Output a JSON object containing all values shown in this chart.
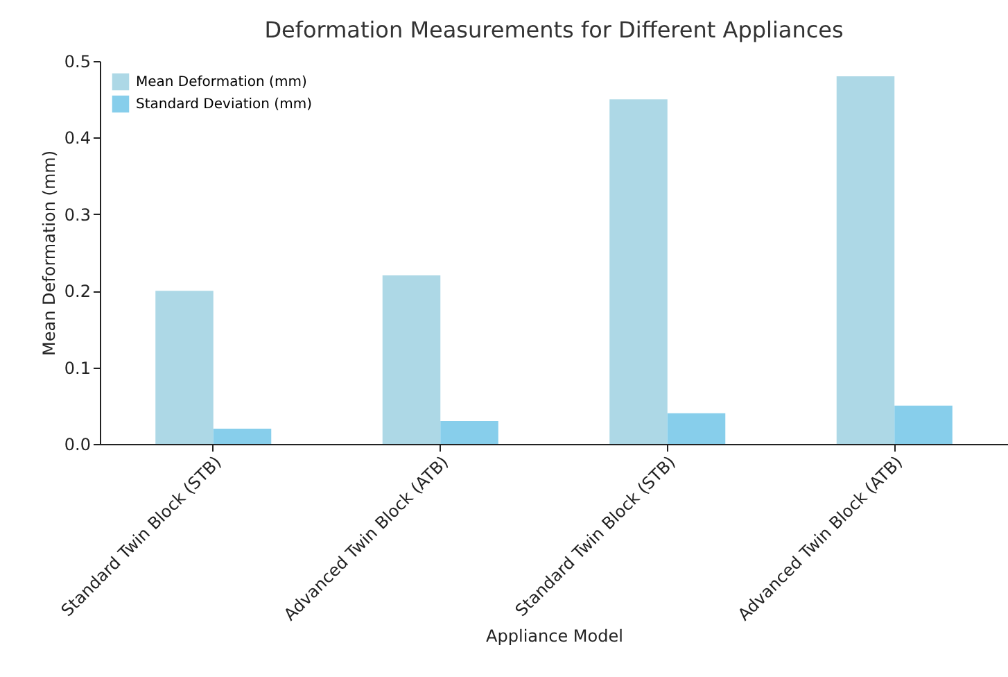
{
  "chart_data": {
    "type": "bar",
    "title": "Deformation Measurements for Different Appliances",
    "xlabel": "Appliance Model",
    "ylabel": "Mean Deformation (mm)",
    "categories": [
      "Standard Twin Block (STB)",
      "Advanced Twin Block (ATB)",
      "Standard Twin Block (STB)",
      "Advanced Twin Block (ATB)"
    ],
    "series": [
      {
        "name": "Mean Deformation (mm)",
        "color": "#add8e6",
        "values": [
          0.2,
          0.22,
          0.45,
          0.48
        ]
      },
      {
        "name": "Standard Deviation (mm)",
        "color": "#87ceeb",
        "values": [
          0.02,
          0.03,
          0.04,
          0.05
        ]
      }
    ],
    "ylim": [
      0,
      0.5
    ],
    "yticks": [
      {
        "value": 0,
        "label": "0.0"
      },
      0.1,
      0.2,
      0.3,
      0.4,
      0.5
    ],
    "legend": "top left",
    "grid": false
  }
}
